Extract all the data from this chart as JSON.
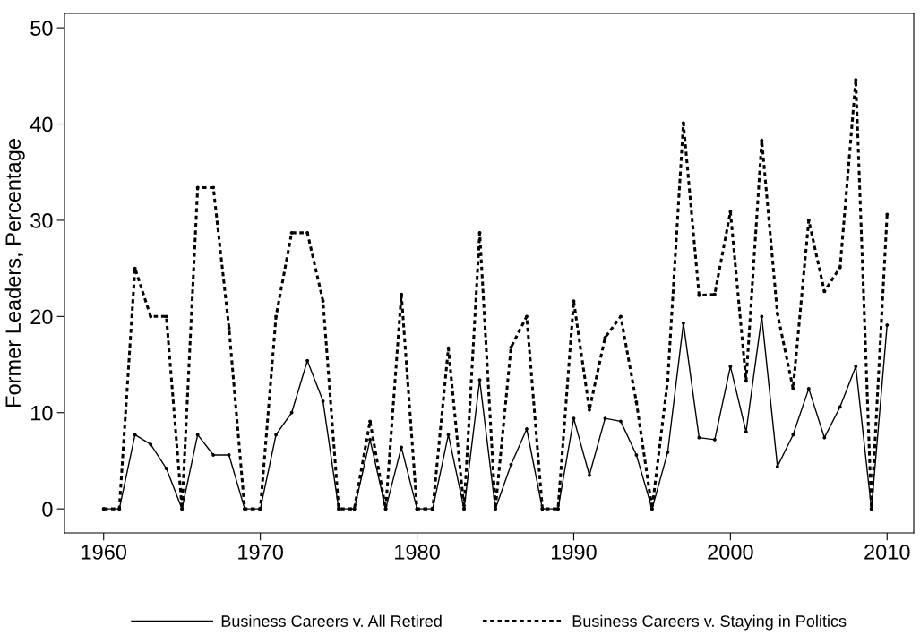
{
  "chart_data": {
    "type": "line",
    "ylabel": "Former Leaders, Percentage",
    "x": [
      1960,
      1961,
      1962,
      1963,
      1964,
      1965,
      1966,
      1967,
      1968,
      1969,
      1970,
      1971,
      1972,
      1973,
      1974,
      1975,
      1976,
      1977,
      1978,
      1979,
      1980,
      1981,
      1982,
      1983,
      1984,
      1985,
      1986,
      1987,
      1988,
      1989,
      1990,
      1991,
      1992,
      1993,
      1994,
      1995,
      1996,
      1997,
      1998,
      1999,
      2000,
      2001,
      2002,
      2003,
      2004,
      2005,
      2006,
      2007,
      2008,
      2009,
      2010
    ],
    "series": [
      {
        "name": "Business Careers v. All Retired",
        "color": "#000000",
        "line_style": "solid",
        "values": [
          0,
          0,
          7.7,
          6.7,
          4.2,
          0,
          7.7,
          5.6,
          5.6,
          0,
          0,
          7.7,
          10,
          15.4,
          11.2,
          0,
          0,
          7.2,
          0,
          6.4,
          0,
          0,
          7.7,
          0,
          13.4,
          0,
          4.6,
          8.3,
          0,
          0,
          9.4,
          3.5,
          9.4,
          9.1,
          5.6,
          0,
          5.9,
          19.3,
          7.4,
          7.2,
          14.8,
          8,
          20,
          4.4,
          7.7,
          12.5,
          7.4,
          10.6,
          14.8,
          0,
          19.1
        ]
      },
      {
        "name": "Business Careers v. Staying in Politics",
        "color": "#000000",
        "line_style": "dotted",
        "values": [
          0,
          0,
          25,
          20,
          20,
          0,
          33.4,
          33.4,
          18.8,
          0,
          0,
          20,
          28.7,
          28.7,
          21.6,
          0,
          0,
          9.1,
          0,
          22.3,
          0,
          0,
          16.7,
          0,
          28.7,
          0,
          16.8,
          20,
          0,
          0,
          21.6,
          10.3,
          17.8,
          20,
          11.1,
          0,
          13.4,
          40.1,
          22.2,
          22.3,
          30.9,
          13.3,
          38.3,
          20.3,
          12.5,
          30,
          22.6,
          25.1,
          44.6,
          0,
          30.6
        ]
      }
    ],
    "xlim": [
      1957.5,
      2011.7
    ],
    "xticks": [
      1960,
      1970,
      1980,
      1990,
      2000,
      2010
    ],
    "ylim": [
      -2.5,
      51.5
    ],
    "yticks": [
      0,
      10,
      20,
      30,
      40,
      50
    ],
    "grid": false,
    "legend": "bottom",
    "marker": "circle"
  }
}
